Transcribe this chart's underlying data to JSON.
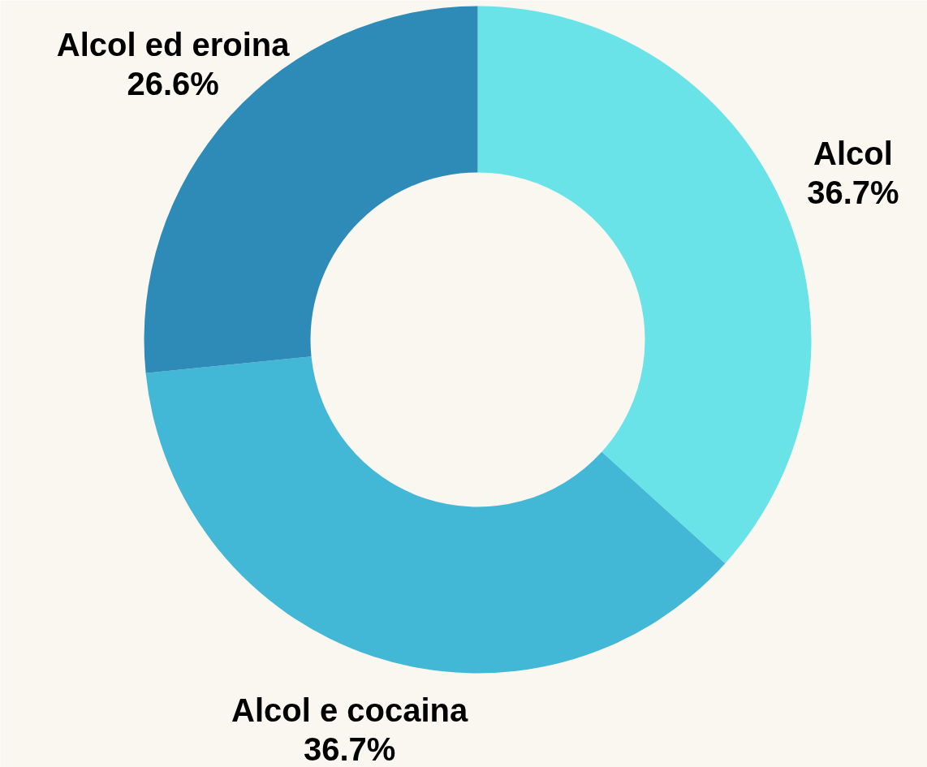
{
  "chart_data": {
    "type": "donut",
    "categories": [
      "Alcol",
      "Alcol e cocaina",
      "Alcol ed eroina"
    ],
    "values": [
      36.7,
      36.7,
      26.6
    ],
    "colors": [
      "#6ae3e8",
      "#43b7d6",
      "#2e8bb8"
    ],
    "value_labels": [
      "36.7%",
      "36.7%",
      "26.6%"
    ]
  }
}
